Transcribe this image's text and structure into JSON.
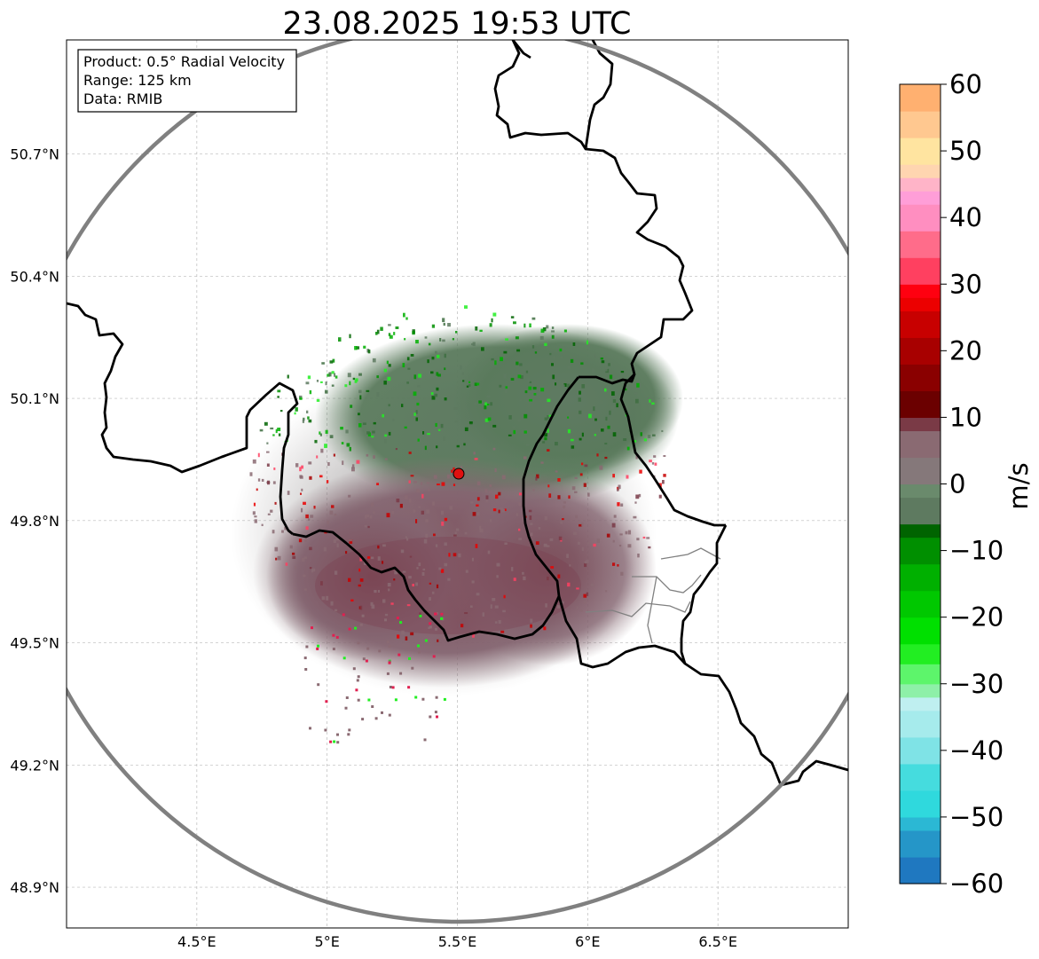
{
  "title": "23.08.2025 19:53 UTC",
  "info_box": {
    "product": "Product: 0.5° Radial Velocity",
    "range": "Range: 125 km",
    "data": "Data: RMIB"
  },
  "map": {
    "lon_range": [
      4.0,
      7.0
    ],
    "lat_range": [
      48.8,
      50.98
    ],
    "lon_ticks": [
      {
        "value": 4.5,
        "label": "4.5°E"
      },
      {
        "value": 5.0,
        "label": "5°E"
      },
      {
        "value": 5.5,
        "label": "5.5°E"
      },
      {
        "value": 6.0,
        "label": "6°E"
      },
      {
        "value": 6.5,
        "label": "6.5°E"
      }
    ],
    "lat_ticks": [
      {
        "value": 50.7,
        "label": "50.7°N"
      },
      {
        "value": 50.4,
        "label": "50.4°N"
      },
      {
        "value": 50.1,
        "label": "50.1°N"
      },
      {
        "value": 49.8,
        "label": "49.8°N"
      },
      {
        "value": 49.5,
        "label": "49.5°N"
      },
      {
        "value": 49.2,
        "label": "49.2°N"
      },
      {
        "value": 48.9,
        "label": "48.9°N"
      }
    ],
    "radar_site": {
      "lon": 5.505,
      "lat": 49.915
    },
    "range_km": 125,
    "grid": true
  },
  "colorbar": {
    "label": "m/s",
    "min": -60,
    "max": 60,
    "ticks": [
      -60,
      -50,
      -40,
      -30,
      -20,
      -10,
      0,
      10,
      20,
      30,
      40,
      50,
      60
    ],
    "tick_labels": [
      "−60",
      "−50",
      "−40",
      "−30",
      "−20",
      "−10",
      "0",
      "10",
      "20",
      "30",
      "40",
      "50",
      "60"
    ],
    "stops": [
      {
        "value": -60,
        "color": "#1f78c0"
      },
      {
        "value": -56,
        "color": "#2596c8"
      },
      {
        "value": -52,
        "color": "#2bb8d4"
      },
      {
        "value": -50,
        "color": "#2fd9dd"
      },
      {
        "value": -46,
        "color": "#45dcde"
      },
      {
        "value": -42,
        "color": "#7fe3e6"
      },
      {
        "value": -38,
        "color": "#a6ebec"
      },
      {
        "value": -34,
        "color": "#bfeff0"
      },
      {
        "value": -32,
        "color": "#8ef0a8"
      },
      {
        "value": -30,
        "color": "#5df56b"
      },
      {
        "value": -27,
        "color": "#22ee22"
      },
      {
        "value": -24,
        "color": "#00e000"
      },
      {
        "value": -20,
        "color": "#00c800"
      },
      {
        "value": -16,
        "color": "#00b000"
      },
      {
        "value": -12,
        "color": "#008f00"
      },
      {
        "value": -8,
        "color": "#006400"
      },
      {
        "value": -6,
        "color": "#5e7a60"
      },
      {
        "value": -2,
        "color": "#6a8a6c"
      },
      {
        "value": 0,
        "color": "#85787a"
      },
      {
        "value": 4,
        "color": "#8a6a72"
      },
      {
        "value": 8,
        "color": "#7a3a46"
      },
      {
        "value": 10,
        "color": "#6b0000"
      },
      {
        "value": 14,
        "color": "#8a0000"
      },
      {
        "value": 18,
        "color": "#a80000"
      },
      {
        "value": 22,
        "color": "#c80000"
      },
      {
        "value": 26,
        "color": "#ec0000"
      },
      {
        "value": 28,
        "color": "#ff0010"
      },
      {
        "value": 30,
        "color": "#ff4060"
      },
      {
        "value": 34,
        "color": "#ff6c8a"
      },
      {
        "value": 38,
        "color": "#ff8ec0"
      },
      {
        "value": 42,
        "color": "#ff9ed8"
      },
      {
        "value": 44,
        "color": "#ffb4c8"
      },
      {
        "value": 46,
        "color": "#ffd5b0"
      },
      {
        "value": 48,
        "color": "#ffe4a0"
      },
      {
        "value": 52,
        "color": "#ffc890"
      },
      {
        "value": 56,
        "color": "#ffb070"
      },
      {
        "value": 60,
        "color": "#ff9a58"
      }
    ]
  },
  "colors": {
    "range_ring": "#808080",
    "country_border": "#000000",
    "province_border": "#808080",
    "radar_marker": "#e01010",
    "grid": "#bbbbbb",
    "inbound_green": "#5e7a60",
    "outbound_maroon": "#7a4a55"
  }
}
